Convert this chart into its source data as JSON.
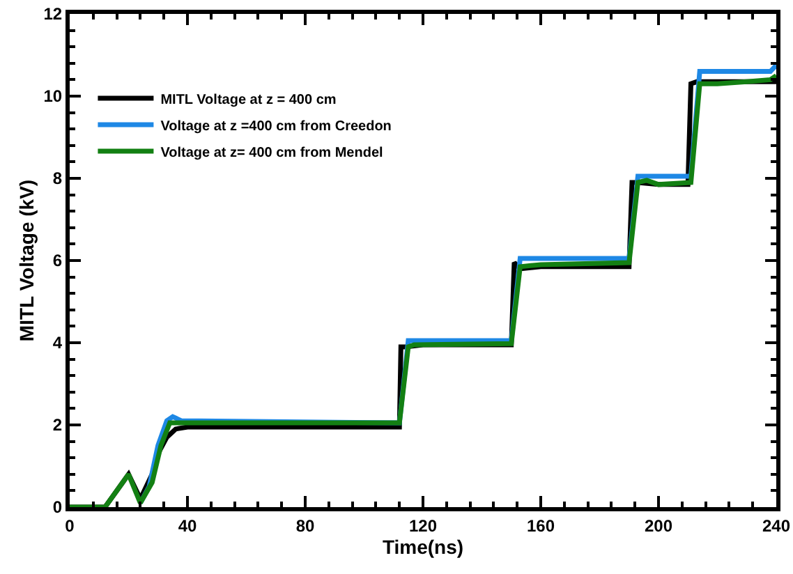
{
  "chart_data": {
    "type": "line",
    "xlabel": "Time(ns)",
    "ylabel": "MITL Voltage (kV)",
    "xlim": [
      0,
      240
    ],
    "xticks": [
      0,
      40,
      80,
      120,
      160,
      200,
      240
    ],
    "ylim": [
      0,
      12
    ],
    "yticks": [
      0,
      2,
      4,
      6,
      8,
      10,
      12
    ],
    "grid": false,
    "legend": "top left",
    "marker": "none",
    "line_style": "solid",
    "series": [
      {
        "name": "MITL Voltage at z = 400 cm",
        "color": "#000000",
        "x": [
          0,
          12,
          18,
          20,
          22,
          24,
          26,
          28,
          30,
          33,
          36,
          40,
          112,
          112.5,
          114,
          120,
          150,
          151,
          153,
          160,
          190,
          191,
          193,
          200,
          210,
          211,
          213,
          240
        ],
        "values": [
          0,
          0,
          0.6,
          0.8,
          0.5,
          0.2,
          0.5,
          0.8,
          1.3,
          1.7,
          1.9,
          1.95,
          1.95,
          3.9,
          3.9,
          3.95,
          3.95,
          5.95,
          5.8,
          5.85,
          5.85,
          7.9,
          7.9,
          7.85,
          7.85,
          10.3,
          10.35,
          10.35
        ]
      },
      {
        "name": "Voltage at z =400 cm from Creedon",
        "color": "#1e88e5",
        "x": [
          24,
          27,
          30,
          33,
          35,
          38,
          112,
          115,
          150,
          153,
          190,
          193,
          211,
          214,
          238,
          240
        ],
        "values": [
          0.1,
          0.5,
          1.5,
          2.1,
          2.2,
          2.1,
          2.05,
          4.05,
          4.05,
          6.05,
          6.05,
          8.05,
          8.05,
          10.6,
          10.6,
          10.75
        ]
      },
      {
        "name": "Voltage at z= 400 cm from Mendel",
        "color": "#138013",
        "x": [
          0,
          12,
          20,
          24,
          28,
          31,
          34,
          40,
          112,
          115,
          117,
          150,
          153,
          160,
          190,
          193,
          196,
          200,
          211,
          214,
          220,
          230,
          238,
          240
        ],
        "values": [
          0,
          0,
          0.8,
          0.1,
          0.6,
          1.5,
          2.05,
          2.05,
          2.05,
          3.9,
          3.95,
          3.98,
          5.85,
          5.9,
          5.95,
          7.9,
          7.95,
          7.85,
          7.9,
          10.3,
          10.3,
          10.35,
          10.4,
          10.5
        ]
      }
    ]
  }
}
